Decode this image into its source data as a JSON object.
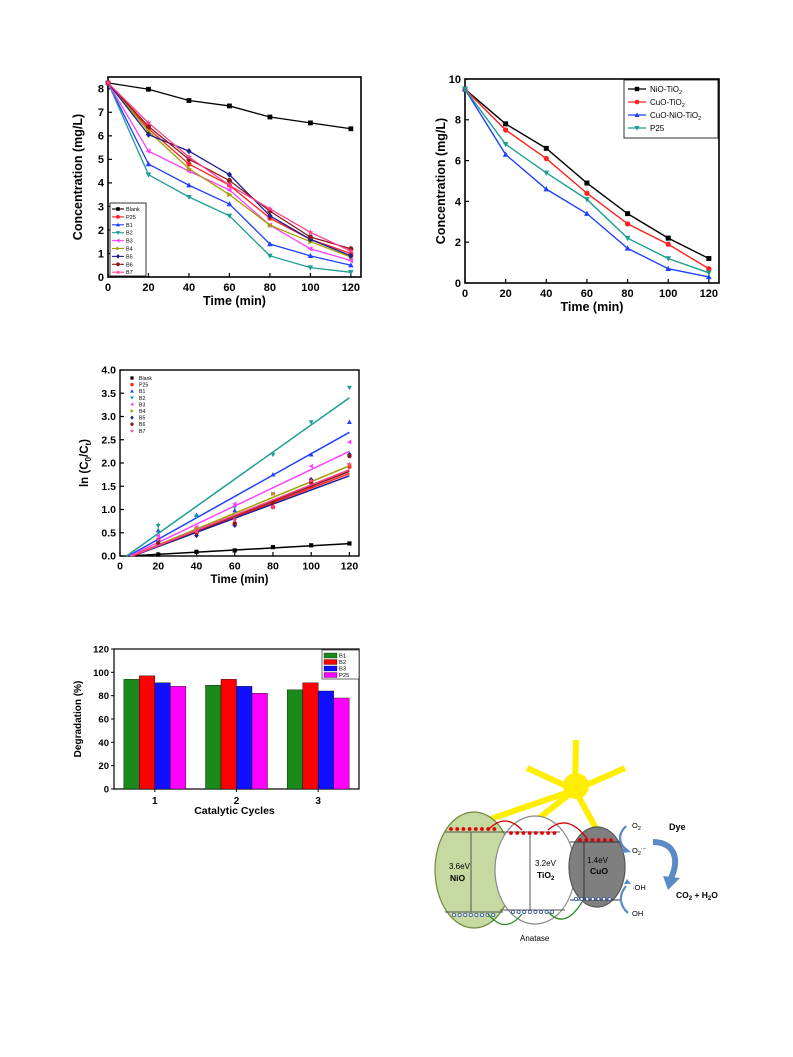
{
  "chart_data": [
    {
      "type": "line",
      "xlabel": "Time (min)",
      "ylabel": "Concentration (mg/L)",
      "xlim": [
        0,
        125
      ],
      "ylim": [
        0,
        8.5
      ],
      "xticks": [
        0,
        20,
        40,
        60,
        80,
        100,
        120
      ],
      "yticks": [
        0,
        1,
        2,
        3,
        4,
        5,
        6,
        7,
        8
      ],
      "legend": "bottom-left",
      "x": [
        0,
        20,
        40,
        60,
        80,
        100,
        120
      ],
      "series": [
        {
          "name": "Blank",
          "color": "#000000",
          "marker": "square",
          "values": [
            8.25,
            7.98,
            7.5,
            7.27,
            6.8,
            6.55,
            6.3
          ]
        },
        {
          "name": "P25",
          "color": "#ff2020",
          "marker": "circle",
          "values": [
            8.25,
            6.3,
            4.8,
            3.9,
            2.5,
            1.6,
            1.0
          ]
        },
        {
          "name": "B1",
          "color": "#2040ff",
          "marker": "triangle-up",
          "values": [
            8.25,
            4.8,
            3.9,
            3.1,
            1.4,
            0.9,
            0.5
          ]
        },
        {
          "name": "B2",
          "color": "#1b9e8f",
          "marker": "triangle-down",
          "values": [
            8.25,
            4.35,
            3.4,
            2.6,
            0.9,
            0.4,
            0.2
          ]
        },
        {
          "name": "B3",
          "color": "#ff40ff",
          "marker": "triangle-left",
          "values": [
            8.25,
            5.35,
            4.5,
            3.7,
            2.2,
            1.2,
            0.7
          ]
        },
        {
          "name": "B4",
          "color": "#a0a000",
          "marker": "triangle-right",
          "values": [
            8.25,
            6.2,
            4.6,
            3.5,
            2.2,
            1.5,
            0.85
          ]
        },
        {
          "name": "B5",
          "color": "#202090",
          "marker": "diamond",
          "values": [
            8.25,
            6.05,
            5.35,
            4.35,
            2.6,
            1.6,
            0.9
          ]
        },
        {
          "name": "B6",
          "color": "#8b1a1a",
          "marker": "hexagon",
          "values": [
            8.25,
            6.4,
            5.0,
            4.1,
            2.8,
            1.7,
            1.2
          ]
        },
        {
          "name": "B7",
          "color": "#ff4090",
          "marker": "star",
          "values": [
            8.25,
            6.55,
            5.1,
            3.9,
            2.9,
            1.9,
            1.1
          ]
        }
      ]
    },
    {
      "type": "line",
      "xlabel": "Time (min)",
      "ylabel": "Concentration (mg/L)",
      "xlim": [
        0,
        125
      ],
      "ylim": [
        0,
        10
      ],
      "xticks": [
        0,
        20,
        40,
        60,
        80,
        100,
        120
      ],
      "yticks": [
        0,
        2,
        4,
        6,
        8,
        10
      ],
      "legend": "top-right",
      "x": [
        0,
        20,
        40,
        60,
        80,
        100,
        120
      ],
      "series": [
        {
          "name": "NiO-TiO",
          "sub": "2",
          "color": "#000000",
          "marker": "square",
          "values": [
            9.5,
            7.8,
            6.6,
            4.9,
            3.4,
            2.2,
            1.2
          ]
        },
        {
          "name": "CuO-TiO",
          "sub": "2",
          "color": "#ff2020",
          "marker": "circle",
          "values": [
            9.5,
            7.5,
            6.1,
            4.4,
            2.9,
            1.9,
            0.7
          ]
        },
        {
          "name": "CuO-NiO-TiO",
          "sub": "2",
          "color": "#2040ff",
          "marker": "triangle-up",
          "values": [
            9.5,
            6.3,
            4.6,
            3.4,
            1.7,
            0.7,
            0.3
          ]
        },
        {
          "name": "P25",
          "sub": "",
          "color": "#1b9e8f",
          "marker": "triangle-down",
          "values": [
            9.5,
            6.8,
            5.4,
            4.1,
            2.2,
            1.2,
            0.5
          ]
        }
      ]
    },
    {
      "type": "scatter",
      "xlabel": "Time (min)",
      "ylabel_parts": [
        "ln (C",
        "0",
        "/C",
        "t",
        ")"
      ],
      "xlim": [
        0,
        125
      ],
      "ylim": [
        0,
        4.0
      ],
      "xticks": [
        0,
        20,
        40,
        60,
        80,
        100,
        120
      ],
      "yticks": [
        "0.0",
        "0.5",
        "1.0",
        "1.5",
        "2.0",
        "2.5",
        "3.0",
        "3.5",
        "4.0"
      ],
      "legend": "top-left",
      "x": [
        20,
        40,
        60,
        80,
        100,
        120
      ],
      "series": [
        {
          "name": "Blank",
          "color": "#000000",
          "marker": "square",
          "values": [
            0.03,
            0.09,
            0.12,
            0.19,
            0.23,
            0.27
          ],
          "fit": [
            0.0023,
            -0.01
          ]
        },
        {
          "name": "P25",
          "color": "#ff2020",
          "marker": "circle",
          "values": [
            0.35,
            0.6,
            0.68,
            1.05,
            1.5,
            1.92
          ],
          "fit": [
            0.0156,
            -0.1
          ]
        },
        {
          "name": "B1",
          "color": "#2040ff",
          "marker": "triangle-up",
          "values": [
            0.55,
            0.88,
            0.98,
            1.75,
            2.18,
            2.88
          ],
          "fit": [
            0.023,
            -0.1
          ]
        },
        {
          "name": "B2",
          "color": "#1b9e8f",
          "marker": "triangle-down",
          "values": [
            0.65,
            0.85,
            1.05,
            2.18,
            2.88,
            3.62
          ],
          "fit": [
            0.0292,
            -0.1
          ]
        },
        {
          "name": "B3",
          "color": "#ff40ff",
          "marker": "triangle-left",
          "values": [
            0.43,
            0.62,
            1.12,
            1.34,
            1.93,
            2.45
          ],
          "fit": [
            0.0196,
            -0.1
          ]
        },
        {
          "name": "B4",
          "color": "#a0a000",
          "marker": "triangle-right",
          "values": [
            0.3,
            0.58,
            0.85,
            1.34,
            1.64,
            1.96
          ],
          "fit": [
            0.017,
            -0.1
          ]
        },
        {
          "name": "B5",
          "color": "#202090",
          "marker": "diamond",
          "values": [
            0.32,
            0.44,
            0.66,
            1.17,
            1.64,
            2.18
          ],
          "fit": [
            0.0152,
            -0.1
          ]
        },
        {
          "name": "B6",
          "color": "#8b1a1a",
          "marker": "hexagon",
          "values": [
            0.27,
            0.5,
            0.7,
            1.15,
            1.58,
            2.15
          ],
          "fit": [
            0.016,
            -0.1
          ]
        },
        {
          "name": "B7",
          "color": "#ff4090",
          "marker": "star",
          "values": [
            0.35,
            0.52,
            0.78,
            1.05,
            1.62,
            1.97
          ],
          "fit": [
            0.0163,
            -0.1
          ]
        }
      ]
    },
    {
      "type": "bar",
      "xlabel": "Catalytic Cycles",
      "ylabel": "Degradation (%)",
      "ylim": [
        0,
        120
      ],
      "yticks": [
        0,
        20,
        40,
        60,
        80,
        100,
        120
      ],
      "legend": "top-right",
      "categories": [
        "1",
        "2",
        "3"
      ],
      "series": [
        {
          "name": "B1",
          "color": "#1a8a1a",
          "values": [
            94,
            89,
            85
          ]
        },
        {
          "name": "B2",
          "color": "#ff0000",
          "values": [
            97,
            94,
            91
          ]
        },
        {
          "name": "B3",
          "color": "#1010ff",
          "values": [
            91,
            88,
            84
          ]
        },
        {
          "name": "P25",
          "color": "#ff00ff",
          "values": [
            88,
            82,
            78
          ]
        }
      ]
    }
  ],
  "diagram": {
    "phase_label": "Anatase",
    "nio": {
      "gap": "3.6eV",
      "name": "NiO",
      "fill": "#c5d9a0"
    },
    "tio2": {
      "gap": "3.2eV",
      "name": "TiO",
      "sub": "2",
      "fill": "#ffffff"
    },
    "cuo": {
      "gap": "1.4eV",
      "name": "CuO",
      "fill": "#7f7f7f"
    },
    "o2_label": "O",
    "o2_sub": "2",
    "o2rad_label": "O",
    "o2rad_sub": "2",
    "o2rad_sup": "·−",
    "oh_rad_label": "·OH",
    "oh_label": "OH",
    "dye_label": "Dye",
    "product_label": "CO",
    "product_sub": "2",
    "product_rest": " + H",
    "product_sub2": "2",
    "product_end": "O",
    "sun_color": "#ffee00",
    "arrow_color": "#5b8bc7"
  }
}
